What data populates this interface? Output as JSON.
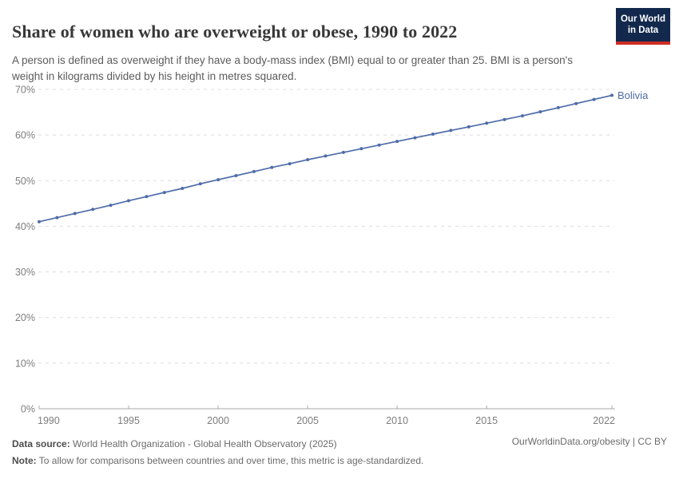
{
  "header": {
    "title": "Share of women who are overweight or obese, 1990 to 2022",
    "subtitle": "A person is defined as overweight if they have a body-mass index (BMI) equal to or greater than 25. BMI is a person's weight in kilograms divided by his height in metres squared.",
    "logo": {
      "line1": "Our World",
      "line2": "in Data",
      "bg_color": "#12294d",
      "stripe_color": "#cf2d24"
    }
  },
  "chart_data": {
    "type": "line",
    "title": "Share of women who are overweight or obese, 1990 to 2022",
    "xlabel": "",
    "ylabel": "",
    "xlim": [
      1990,
      2022
    ],
    "ylim": [
      0,
      70
    ],
    "grid": "horizontal-dashed",
    "legend": "end-of-line-label",
    "x_ticks": [
      1990,
      1995,
      2000,
      2005,
      2010,
      2015,
      2022
    ],
    "y_ticks": [
      0,
      10,
      20,
      30,
      40,
      50,
      60,
      70
    ],
    "y_tick_suffix": "%",
    "series": [
      {
        "name": "Bolivia",
        "color": "#4e6ca8",
        "x": [
          1990,
          1991,
          1992,
          1993,
          1994,
          1995,
          1996,
          1997,
          1998,
          1999,
          2000,
          2001,
          2002,
          2003,
          2004,
          2005,
          2006,
          2007,
          2008,
          2009,
          2010,
          2011,
          2012,
          2013,
          2014,
          2015,
          2016,
          2017,
          2018,
          2019,
          2020,
          2021,
          2022
        ],
        "values": [
          41.0,
          41.9,
          42.8,
          43.7,
          44.6,
          45.6,
          46.5,
          47.4,
          48.3,
          49.3,
          50.2,
          51.1,
          52.0,
          52.9,
          53.7,
          54.6,
          55.4,
          56.2,
          57.0,
          57.8,
          58.6,
          59.4,
          60.2,
          61.0,
          61.8,
          62.6,
          63.4,
          64.2,
          65.1,
          66.0,
          66.9,
          67.8,
          68.7
        ]
      }
    ]
  },
  "footer": {
    "datasource_label": "Data source:",
    "datasource_value": " World Health Organization - Global Health Observatory (2025)",
    "note_label": "Note:",
    "note_value": " To allow for comparisons between countries and over time, this metric is age-standardized.",
    "right_text": "OurWorldinData.org/obesity | CC BY"
  }
}
